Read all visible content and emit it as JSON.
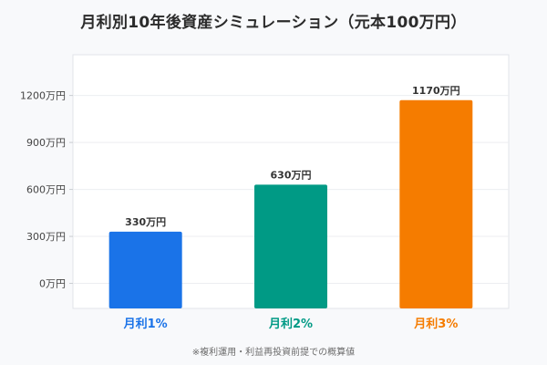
{
  "title": "月利別10年後資産シミュレーション（元本100万円）",
  "footnote": "※複利運用・利益再投資前提での概算値",
  "chart_data": {
    "type": "bar",
    "title": "月利別10年後資産シミュレーション（元本100万円）",
    "categories": [
      "月利1%",
      "月利2%",
      "月利3%"
    ],
    "values": [
      330,
      630,
      1170
    ],
    "value_labels": [
      "330万円",
      "630万円",
      "1170万円"
    ],
    "colors": [
      "#1a73e8",
      "#009a85",
      "#f57c00"
    ],
    "yticks": [
      0,
      300,
      600,
      900,
      1200
    ],
    "ytick_labels": [
      "0万円",
      "300万円",
      "600万円",
      "900万円",
      "1200万円"
    ],
    "ylim": [
      -160,
      1460
    ],
    "grid": true,
    "xlabel": "",
    "ylabel": ""
  }
}
